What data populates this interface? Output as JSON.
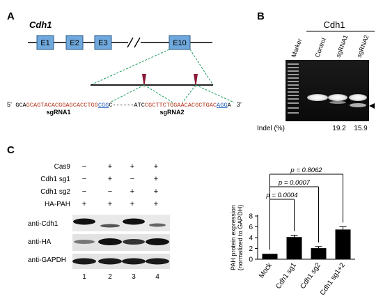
{
  "panels": {
    "a": {
      "label": "A",
      "gene": "Cdh1",
      "exons": [
        "E1",
        "E2",
        "E3",
        "E10"
      ],
      "break_symbol": "//",
      "sequence": {
        "prime5": "5’",
        "prime3": "3’",
        "seg_black_1": "GCA",
        "seg_red_1": "GCAGTACACGGAGCACCTGG",
        "seg_pam_1": "CGG",
        "seg_black_2": "C------ATC",
        "seg_red_2": "CGCTTCTGGAACACGCTGAC",
        "seg_pam_2": "AGG",
        "seg_black_3": "A"
      },
      "sgrna_labels": [
        "sgRNA1",
        "sgRNA2"
      ]
    },
    "b": {
      "label": "B",
      "gene": "Cdh1",
      "lanes": [
        "Marker",
        "Control",
        "sgRNA1",
        "sgRNA2"
      ],
      "indel_label": "Indel (%)",
      "indel_values": [
        "19.2",
        "15.9"
      ]
    },
    "c": {
      "label": "C",
      "row_labels": [
        "Cas9",
        "Cdh1 sg1",
        "Cdh1 sg2",
        "HA-PAH"
      ],
      "row_values": [
        [
          "−",
          "+",
          "+",
          "+"
        ],
        [
          "−",
          "+",
          "−",
          "+"
        ],
        [
          "−",
          "−",
          "+",
          "+"
        ],
        [
          "+",
          "+",
          "+",
          "+"
        ]
      ],
      "blot_labels": [
        "anti-Cdh1",
        "anti-HA",
        "anti-GAPDH"
      ],
      "lane_numbers": [
        "1",
        "2",
        "3",
        "4"
      ]
    }
  },
  "chart_data": {
    "type": "bar",
    "ylabel_line1": "PAH protein expression",
    "ylabel_line2": "(normalized to GAPDH)",
    "categories": [
      "Mock",
      "Cdh1 sg1",
      "Cdh1 sg2",
      "Cdh1 sg1+2"
    ],
    "values": [
      1.0,
      4.1,
      2.05,
      5.5
    ],
    "errors": [
      0.0,
      0.35,
      0.3,
      0.5
    ],
    "ylim": [
      0,
      8
    ],
    "yticks": [
      0,
      2,
      4,
      6,
      8
    ],
    "bar_color": "#000000",
    "comparisons": [
      {
        "from": 0,
        "to": 1,
        "label": "p = 0.0004"
      },
      {
        "from": 0,
        "to": 2,
        "label": "p = 0.0007"
      },
      {
        "from": 0,
        "to": 3,
        "label": "p = 0.8062"
      }
    ]
  },
  "colors": {
    "exon_fill": "#6fa8dc",
    "exon_stroke": "#2f5d8a",
    "guide_line": "#1a9a5a",
    "sgrna_red": "#b5341a",
    "pam_blue": "#1f5fbf",
    "cut_marker": "#8b1a3a"
  }
}
